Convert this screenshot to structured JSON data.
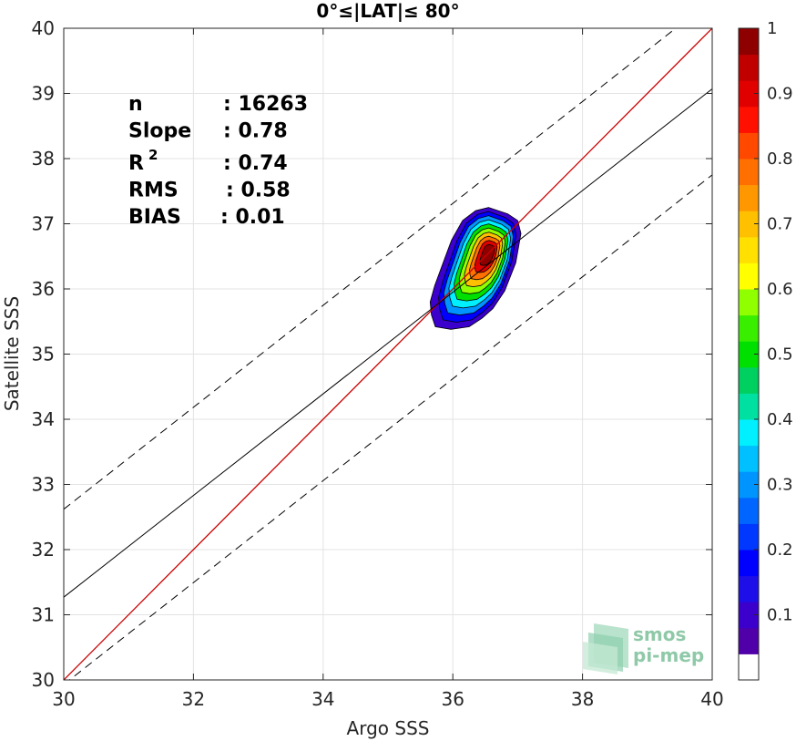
{
  "chart_data": {
    "type": "scatter",
    "title": "0°≤|LAT|≤ 80°",
    "xlabel": "Argo SSS",
    "ylabel": "Satellite SSS",
    "xlim": [
      30,
      40
    ],
    "ylim": [
      30,
      40
    ],
    "xticks": [
      "30",
      "32",
      "34",
      "36",
      "38",
      "40"
    ],
    "yticks": [
      "30",
      "31",
      "32",
      "33",
      "34",
      "35",
      "36",
      "37",
      "38",
      "39",
      "40"
    ],
    "grid": true,
    "stats": [
      {
        "label": "n",
        "value": ": 16263"
      },
      {
        "label": "Slope",
        "value": ": 0.78"
      },
      {
        "label": "R",
        "sup": "2",
        "value": ": 0.74"
      },
      {
        "label": "RMS",
        "value": ": 0.58"
      },
      {
        "label": "BIAS",
        "value": ": 0.01"
      }
    ],
    "lines": [
      {
        "role": "one-to-one",
        "color": "#cc0000",
        "x": [
          30,
          40
        ],
        "y": [
          30,
          40
        ]
      },
      {
        "role": "regression",
        "color": "#000000",
        "x": [
          30,
          40
        ],
        "y": [
          31.27,
          39.07
        ]
      },
      {
        "role": "upper-bound",
        "color": "#000000",
        "dash": true,
        "x": [
          30,
          40
        ],
        "y": [
          32.62,
          40.44
        ]
      },
      {
        "role": "lower-bound",
        "color": "#000000",
        "dash": true,
        "x": [
          30,
          40
        ],
        "y": [
          29.93,
          37.75
        ]
      }
    ],
    "density_contours": {
      "center": [
        36.5,
        36.5
      ],
      "levels": [
        0.05,
        0.1,
        0.2,
        0.3,
        0.4,
        0.5,
        0.6,
        0.7,
        0.8,
        0.9
      ],
      "outer_boundary": [
        [
          35.67,
          35.6
        ],
        [
          35.73,
          35.42
        ],
        [
          35.97,
          35.38
        ],
        [
          36.25,
          35.42
        ],
        [
          36.45,
          35.55
        ],
        [
          36.62,
          35.7
        ],
        [
          36.8,
          35.97
        ],
        [
          36.97,
          36.4
        ],
        [
          37.05,
          36.85
        ],
        [
          37.0,
          37.05
        ],
        [
          36.85,
          37.15
        ],
        [
          36.55,
          37.25
        ],
        [
          36.35,
          37.2
        ],
        [
          36.15,
          37.05
        ],
        [
          35.98,
          36.75
        ],
        [
          35.85,
          36.4
        ],
        [
          35.72,
          36.05
        ],
        [
          35.65,
          35.8
        ]
      ]
    },
    "colorbar": {
      "ticks": [
        "0.1",
        "0.2",
        "0.3",
        "0.4",
        "0.5",
        "0.6",
        "0.7",
        "0.8",
        "0.9",
        "1"
      ],
      "colors": [
        "#ffffff",
        "#5000a8",
        "#3b00cc",
        "#1e0ee8",
        "#0000ff",
        "#0038ff",
        "#0066ff",
        "#0094ff",
        "#00c0ff",
        "#00f0ff",
        "#00e0a0",
        "#00d060",
        "#00e000",
        "#3aee00",
        "#90ff00",
        "#ffff00",
        "#ffe000",
        "#ffc000",
        "#ff9800",
        "#ff7000",
        "#ff4800",
        "#ff1000",
        "#e00000",
        "#c00000",
        "#8e0000"
      ]
    }
  },
  "logo": {
    "line1": "smos",
    "line2": "pi-mep"
  }
}
